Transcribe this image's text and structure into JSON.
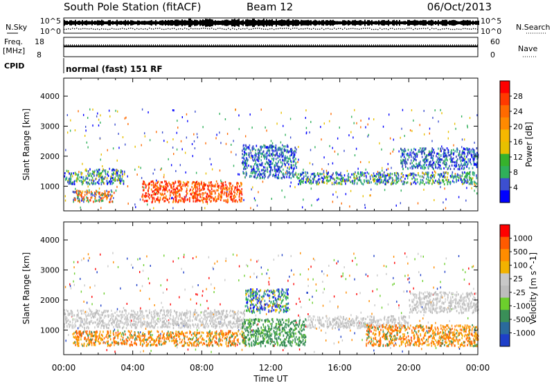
{
  "header": {
    "station": "South Pole Station (fitACF)",
    "beam": "Beam 12",
    "date": "06/Oct/2013"
  },
  "status_panels": {
    "nsky_label": "N.Sky",
    "nsearch_label": "N.Search",
    "noise_ticks": [
      "10^5",
      "10^0"
    ],
    "freq_label_1": "Freq.",
    "freq_label_2": "[MHz]",
    "freq_ticks": [
      "18",
      "8"
    ],
    "nave_label": "Nave",
    "nave_ticks": [
      "60",
      "0"
    ],
    "cpid_label": "CPID",
    "cpid_value": "normal (fast) 151 RF"
  },
  "time_axis": {
    "title": "Time UT",
    "ticks": [
      "00:00",
      "04:00",
      "08:00",
      "12:00",
      "16:00",
      "20:00",
      "00:00"
    ]
  },
  "chart_data": [
    {
      "type": "heatmap",
      "panel": "power",
      "ylabel": "Slant Range [km]",
      "yticks": [
        1000,
        2000,
        3000,
        4000
      ],
      "ylim": [
        180,
        4600
      ],
      "xlim_hours": [
        0,
        24
      ],
      "colorbar": {
        "label": "Power [dB]",
        "ticks": [
          "28",
          "24",
          "20",
          "16",
          "12",
          "8",
          "4"
        ],
        "colors": [
          "#0000ff",
          "#3c4fd0",
          "#2fb05a",
          "#36b22c",
          "#e8c000",
          "#f6b800",
          "#ff8a00",
          "#ff6a00",
          "#ff3a00",
          "#ff0000"
        ]
      },
      "regions": [
        {
          "t0": 0.0,
          "t1": 3.5,
          "r0": 1100,
          "r1": 1600,
          "level": "green"
        },
        {
          "t0": 0.5,
          "t1": 3.0,
          "r0": 500,
          "r1": 900,
          "level": "orange-red"
        },
        {
          "t0": 4.5,
          "t1": 10.3,
          "r0": 500,
          "r1": 1200,
          "level": "red"
        },
        {
          "t0": 10.3,
          "t1": 13.5,
          "r0": 1300,
          "r1": 2400,
          "level": "blue"
        },
        {
          "t0": 13.5,
          "t1": 24.0,
          "r0": 1100,
          "r1": 1500,
          "level": "green"
        },
        {
          "t0": 19.5,
          "t1": 24.0,
          "r0": 1600,
          "r1": 2300,
          "level": "blue"
        }
      ]
    },
    {
      "type": "heatmap",
      "panel": "velocity",
      "ylabel": "Slant Range [km]",
      "yticks": [
        1000,
        2000,
        3000,
        4000
      ],
      "ylim": [
        180,
        4600
      ],
      "xlim_hours": [
        0,
        24
      ],
      "colorbar": {
        "label": "Velocity [m s^-1]",
        "ticks": [
          "1000",
          "500",
          "100",
          "25",
          "-25",
          "-100",
          "-500",
          "-1000"
        ],
        "colors": [
          "#1e3fc8",
          "#2a6a9c",
          "#3a8f58",
          "#6ccf2c",
          "#bdbdbd",
          "#c8c8c8",
          "#f2b200",
          "#ff8c00",
          "#ff5a00",
          "#ff0000"
        ]
      },
      "regions": [
        {
          "t0": 0.0,
          "t1": 10.5,
          "r0": 1100,
          "r1": 1700,
          "level": "grey"
        },
        {
          "t0": 0.5,
          "t1": 10.5,
          "r0": 500,
          "r1": 1000,
          "level": "orange"
        },
        {
          "t0": 10.3,
          "t1": 14.0,
          "r0": 500,
          "r1": 1400,
          "level": "dark-green"
        },
        {
          "t0": 10.5,
          "t1": 13.0,
          "r0": 1600,
          "r1": 2400,
          "level": "green"
        },
        {
          "t0": 14.0,
          "t1": 20.0,
          "r0": 1100,
          "r1": 1500,
          "level": "grey"
        },
        {
          "t0": 17.5,
          "t1": 24.0,
          "r0": 500,
          "r1": 1200,
          "level": "orange"
        },
        {
          "t0": 20.0,
          "t1": 24.0,
          "r0": 1600,
          "r1": 2300,
          "level": "grey"
        }
      ]
    }
  ]
}
